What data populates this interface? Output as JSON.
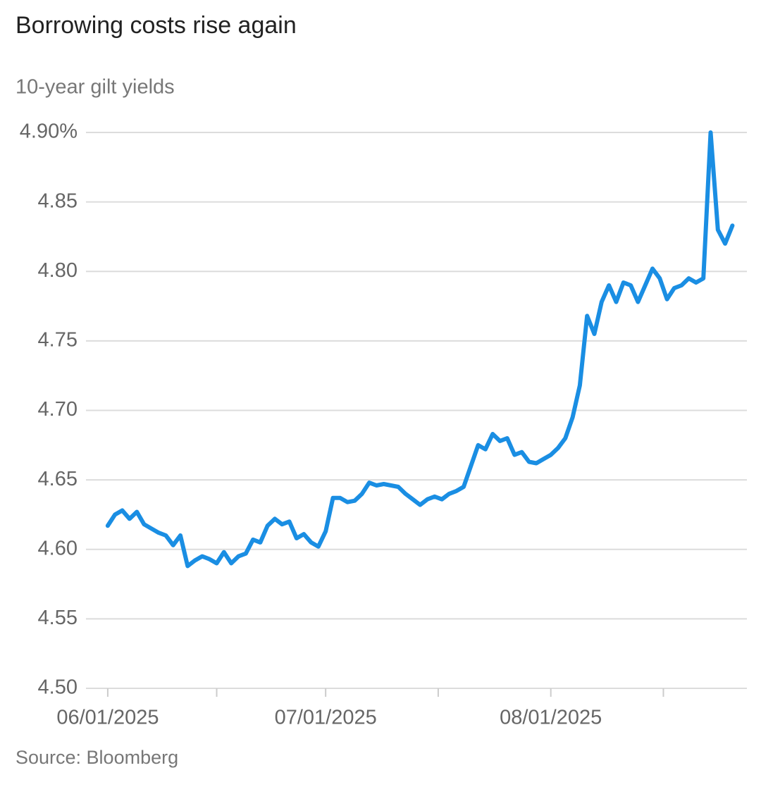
{
  "chart_data": {
    "type": "line",
    "title": "Borrowing costs rise again",
    "subtitle": "10-year gilt yields",
    "source": "Source: Bloomberg",
    "x": [
      "06/01/2025",
      "06/02/2025",
      "06/03/2025",
      "06/04/2025",
      "06/05/2025",
      "06/06/2025",
      "06/07/2025",
      "06/08/2025",
      "06/09/2025",
      "06/10/2025",
      "06/11/2025",
      "06/12/2025",
      "06/13/2025",
      "06/14/2025",
      "06/15/2025",
      "06/16/2025",
      "06/17/2025",
      "06/18/2025",
      "06/19/2025",
      "06/20/2025",
      "06/21/2025",
      "06/22/2025",
      "06/23/2025",
      "06/24/2025",
      "06/25/2025",
      "06/26/2025",
      "06/27/2025",
      "06/28/2025",
      "06/29/2025",
      "06/30/2025",
      "07/01/2025",
      "07/02/2025",
      "07/03/2025",
      "07/04/2025",
      "07/05/2025",
      "07/06/2025",
      "07/07/2025",
      "07/08/2025",
      "07/09/2025",
      "07/10/2025",
      "07/11/2025",
      "07/12/2025",
      "07/13/2025",
      "07/14/2025",
      "07/15/2025",
      "07/16/2025",
      "07/17/2025",
      "07/18/2025",
      "07/19/2025",
      "07/20/2025",
      "07/21/2025",
      "07/22/2025",
      "07/23/2025",
      "07/24/2025",
      "07/25/2025",
      "07/26/2025",
      "07/27/2025",
      "07/28/2025",
      "07/29/2025",
      "07/30/2025",
      "07/31/2025",
      "08/01/2025",
      "08/02/2025",
      "08/03/2025",
      "08/04/2025",
      "08/05/2025",
      "08/06/2025",
      "08/07/2025",
      "08/08/2025",
      "08/09/2025",
      "08/10/2025",
      "08/11/2025",
      "08/12/2025",
      "08/13/2025",
      "08/14/2025",
      "08/15/2025",
      "08/16/2025",
      "08/17/2025",
      "08/18/2025",
      "08/19/2025",
      "08/20/2025",
      "08/21/2025",
      "08/22/2025",
      "08/23/2025",
      "08/24/2025",
      "08/25/2025",
      "08/26/2025"
    ],
    "series": [
      {
        "name": "10-year gilt yield",
        "color": "#1a8ee3",
        "values": [
          4.617,
          4.625,
          4.628,
          4.622,
          4.627,
          4.618,
          4.615,
          4.612,
          4.61,
          4.603,
          4.61,
          4.588,
          4.592,
          4.595,
          4.593,
          4.59,
          4.598,
          4.59,
          4.595,
          4.597,
          4.607,
          4.605,
          4.617,
          4.622,
          4.618,
          4.62,
          4.608,
          4.611,
          4.605,
          4.602,
          4.613,
          4.637,
          4.637,
          4.634,
          4.635,
          4.64,
          4.648,
          4.646,
          4.647,
          4.646,
          4.645,
          4.64,
          4.636,
          4.632,
          4.636,
          4.638,
          4.636,
          4.64,
          4.642,
          4.645,
          4.66,
          4.675,
          4.672,
          4.683,
          4.678,
          4.68,
          4.668,
          4.67,
          4.663,
          4.662,
          4.665,
          4.668,
          4.673,
          4.68,
          4.695,
          4.718,
          4.768,
          4.755,
          4.778,
          4.79,
          4.778,
          4.792,
          4.79,
          4.778,
          4.79,
          4.802,
          4.795,
          4.78,
          4.788,
          4.79,
          4.795,
          4.792,
          4.795,
          4.9,
          4.83,
          4.82,
          4.833
        ]
      }
    ],
    "xlim": [
      "05/29/2025",
      "08/28/2025"
    ],
    "xticks": [
      "06/01/2025",
      "07/01/2025",
      "08/01/2025"
    ],
    "ylim": [
      4.5,
      4.9
    ],
    "yticks": [
      {
        "value": 4.5,
        "label": "4.50"
      },
      4.55,
      {
        "value": 4.6,
        "label": "4.60"
      },
      4.65,
      {
        "value": 4.7,
        "label": "4.70"
      },
      4.75,
      {
        "value": 4.8,
        "label": "4.80"
      },
      4.85,
      {
        "value": 4.9,
        "label": "4.90%"
      }
    ],
    "grid": true
  }
}
